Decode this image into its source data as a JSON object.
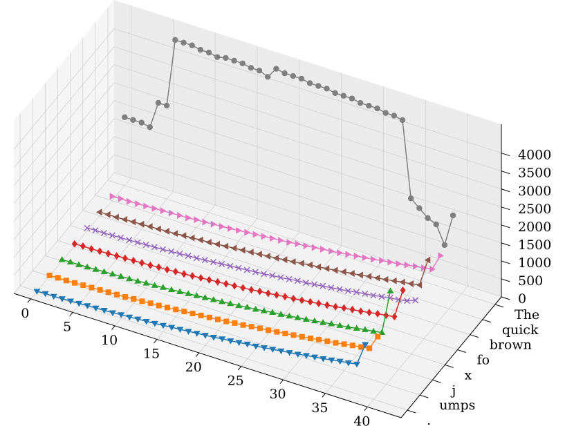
{
  "chart_data": {
    "type": "line3d",
    "x": [
      0,
      1,
      2,
      3,
      4,
      5,
      6,
      7,
      8,
      9,
      10,
      11,
      12,
      13,
      14,
      15,
      16,
      17,
      18,
      19,
      20,
      21,
      22,
      23,
      24,
      25,
      26,
      27,
      28,
      29,
      30,
      31,
      32,
      33,
      34,
      35,
      36,
      37,
      38,
      39
    ],
    "xlim": [
      -2,
      44
    ],
    "xticks": [
      0,
      5,
      10,
      15,
      20,
      25,
      30,
      35,
      40
    ],
    "ylim": [
      -0.5,
      7.5
    ],
    "yticks": [
      {
        "value": 0,
        "label": "."
      },
      {
        "value": 1,
        "label": "umps"
      },
      {
        "value": 2,
        "label": "j"
      },
      {
        "value": 3,
        "label": "x"
      },
      {
        "value": 4,
        "label": "fo"
      },
      {
        "value": 5,
        "label": "brown"
      },
      {
        "value": 6,
        "label": "quick"
      },
      {
        "value": 7,
        "label": "The"
      }
    ],
    "zlim": [
      0,
      4800
    ],
    "zticks": [
      0,
      500,
      1000,
      1500,
      2000,
      2500,
      3000,
      3500,
      4000
    ],
    "grid": true,
    "series": [
      {
        "y": 0,
        "color": "#1f77b4",
        "marker": "v",
        "values": [
          0,
          10,
          10,
          20,
          30,
          40,
          50,
          60,
          70,
          80,
          100,
          110,
          130,
          140,
          160,
          180,
          200,
          220,
          240,
          260,
          280,
          300,
          330,
          350,
          380,
          410,
          430,
          460,
          490,
          520,
          550,
          580,
          620,
          650,
          680,
          720,
          760,
          790,
          830,
          1450
        ]
      },
      {
        "y": 1,
        "color": "#ff7f0e",
        "marker": "s",
        "values": [
          20,
          30,
          30,
          40,
          50,
          60,
          70,
          80,
          90,
          100,
          120,
          130,
          150,
          160,
          180,
          200,
          220,
          240,
          260,
          280,
          300,
          320,
          350,
          370,
          400,
          430,
          450,
          480,
          510,
          540,
          570,
          600,
          640,
          670,
          700,
          740,
          780,
          810,
          850,
          1250
        ]
      },
      {
        "y": 2,
        "color": "#2ca02c",
        "marker": "^",
        "values": [
          40,
          50,
          50,
          60,
          70,
          80,
          90,
          100,
          110,
          120,
          140,
          150,
          170,
          180,
          200,
          220,
          240,
          260,
          280,
          300,
          320,
          340,
          370,
          390,
          420,
          450,
          470,
          500,
          530,
          560,
          590,
          620,
          660,
          690,
          720,
          760,
          800,
          830,
          870,
          2100
        ]
      },
      {
        "y": 3,
        "color": "#d62728",
        "marker": "D",
        "values": [
          60,
          70,
          70,
          80,
          90,
          100,
          110,
          120,
          130,
          140,
          160,
          170,
          190,
          200,
          220,
          240,
          260,
          280,
          300,
          320,
          340,
          360,
          390,
          410,
          440,
          470,
          490,
          520,
          550,
          580,
          610,
          640,
          680,
          710,
          740,
          780,
          820,
          850,
          890,
          1700
        ]
      },
      {
        "y": 4,
        "color": "#9467bd",
        "marker": "x",
        "values": [
          80,
          90,
          90,
          100,
          110,
          120,
          130,
          140,
          150,
          160,
          180,
          190,
          210,
          220,
          240,
          260,
          280,
          300,
          320,
          340,
          360,
          380,
          410,
          430,
          460,
          490,
          510,
          540,
          570,
          600,
          630,
          660,
          700,
          730,
          760,
          800,
          840,
          870,
          910,
          1000
        ]
      },
      {
        "y": 5,
        "color": "#8c564b",
        "marker": "<",
        "values": [
          100,
          110,
          110,
          120,
          130,
          140,
          150,
          160,
          170,
          180,
          200,
          210,
          230,
          240,
          260,
          280,
          300,
          320,
          340,
          360,
          380,
          400,
          430,
          450,
          480,
          510,
          530,
          560,
          590,
          620,
          650,
          680,
          720,
          750,
          780,
          820,
          860,
          890,
          930,
          1700
        ]
      },
      {
        "y": 6,
        "color": "#e377c2",
        "marker": ">",
        "values": [
          120,
          130,
          130,
          140,
          150,
          160,
          170,
          180,
          190,
          200,
          220,
          230,
          250,
          260,
          280,
          300,
          320,
          340,
          360,
          380,
          400,
          420,
          450,
          470,
          500,
          530,
          550,
          580,
          610,
          640,
          670,
          700,
          740,
          770,
          800,
          840,
          880,
          910,
          950,
          1400
        ]
      },
      {
        "y": 7,
        "color": "#7f7f7f",
        "marker": "o",
        "values": [
          1900,
          1900,
          1900,
          1850,
          2600,
          2600,
          4500,
          4500,
          4500,
          4450,
          4450,
          4400,
          4450,
          4450,
          4450,
          4400,
          4400,
          4300,
          4600,
          4550,
          4550,
          4550,
          4500,
          4500,
          4500,
          4450,
          4450,
          4450,
          4400,
          4400,
          4400,
          4350,
          4350,
          4300,
          2200,
          2000,
          1800,
          1700,
          1200,
          2100
        ]
      }
    ]
  }
}
